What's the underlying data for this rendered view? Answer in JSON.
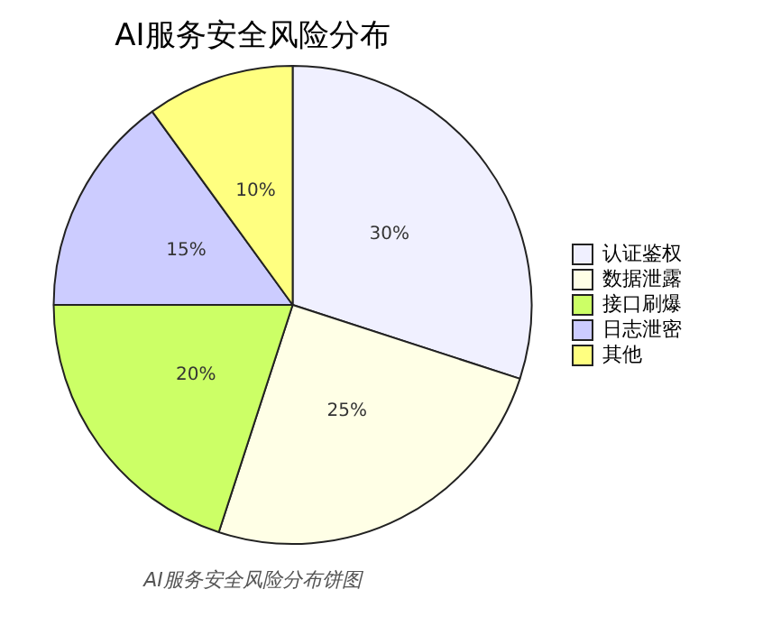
{
  "chart_data": {
    "type": "pie",
    "title": "AI服务安全风险分布",
    "categories": [
      "认证鉴权",
      "数据泄露",
      "接口刷爆",
      "日志泄密",
      "其他"
    ],
    "values": [
      30,
      25,
      20,
      15,
      10
    ],
    "value_labels": [
      "30%",
      "25%",
      "20%",
      "15%",
      "10%"
    ],
    "colors": [
      "#f0f0ff",
      "#ffffe6",
      "#ccff66",
      "#ccccff",
      "#ffff80"
    ],
    "legend": "right",
    "annotations": [
      "AI服务安全风险分布饼图"
    ]
  }
}
